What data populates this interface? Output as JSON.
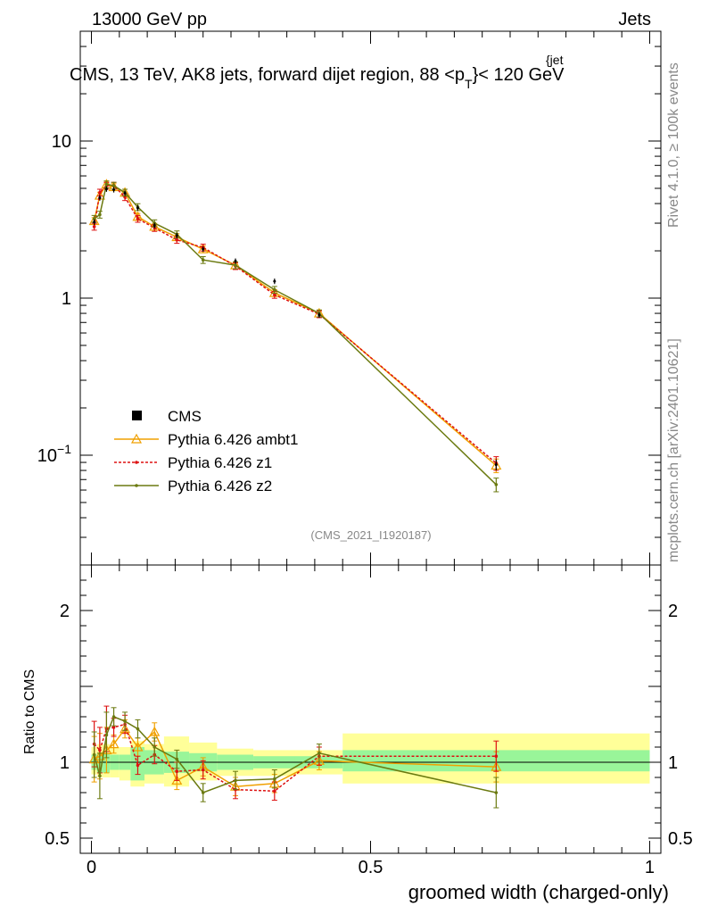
{
  "header": {
    "left": "13000 GeV pp",
    "right": "Jets",
    "title_main": "CMS, 13 TeV, AK8 jets, forward dijet region, 88 <p",
    "title_sub": "T",
    "title_sup": "{jet",
    "title_end": "}< 120 GeV",
    "side_rivet": "Rivet 4.1.0, ≥ 100k events",
    "side_mcplots": "mcplots.cern.ch [arXiv:2401.10621]",
    "analysis_id": "(CMS_2021_I1920187)"
  },
  "legend": [
    {
      "name": "CMS",
      "color": "#000000"
    },
    {
      "name": "Pythia 6.426 ambt1",
      "color": "#f0a000"
    },
    {
      "name": "Pythia 6.426 z1",
      "color": "#dd1111"
    },
    {
      "name": "Pythia 6.426 z2",
      "color": "#6b7a10"
    }
  ],
  "chart_data": [
    {
      "type": "line",
      "title": "CMS, 13 TeV, AK8 jets, forward dijet region, 88 < pT^{jet} < 120 GeV",
      "xlabel": "groomed width (charged-only)",
      "ylabel": "",
      "xlim": [
        -0.02,
        1.02
      ],
      "ylim": [
        0.02,
        50
      ],
      "yscale": "log",
      "ytick_labels": [
        "10^{-1}",
        "1",
        "10"
      ],
      "x": [
        0.005,
        0.015,
        0.027,
        0.04,
        0.06,
        0.083,
        0.113,
        0.153,
        0.2,
        0.258,
        0.328,
        0.408,
        0.725
      ],
      "series": [
        {
          "name": "CMS",
          "values": [
            3.05,
            4.35,
            4.95,
            4.9,
            4.65,
            3.75,
            2.9,
            2.5,
            2.05,
            1.72,
            1.28,
            0.78,
            0.087
          ]
        },
        {
          "name": "Pythia 6.426 ambt1",
          "values": [
            3.1,
            4.5,
            5.3,
            5.1,
            4.7,
            3.3,
            2.85,
            2.45,
            2.05,
            1.62,
            1.08,
            0.8,
            0.086
          ]
        },
        {
          "name": "Pythia 6.426 z1",
          "values": [
            2.85,
            4.7,
            5.2,
            5.2,
            4.4,
            3.2,
            2.8,
            2.35,
            2.1,
            1.6,
            1.05,
            0.79,
            0.089
          ]
        },
        {
          "name": "Pythia 6.426 z2",
          "values": [
            3.2,
            3.4,
            5.3,
            5.2,
            4.7,
            3.8,
            3.0,
            2.55,
            1.75,
            1.62,
            1.13,
            0.8,
            0.065
          ]
        }
      ]
    },
    {
      "type": "line",
      "title": "",
      "xlabel": "groomed width (charged-only)",
      "ylabel": "Ratio to CMS",
      "xlim": [
        -0.02,
        1.02
      ],
      "ylim": [
        0.4,
        2.3
      ],
      "ytick_labels": [
        "0.5",
        "1",
        "2"
      ],
      "xtick_labels": [
        "0",
        "0.5",
        "1"
      ],
      "x": [
        0.005,
        0.015,
        0.027,
        0.04,
        0.06,
        0.083,
        0.113,
        0.153,
        0.2,
        0.258,
        0.328,
        0.408,
        0.725
      ],
      "bands": {
        "bins": [
          0,
          0.01,
          0.02,
          0.033,
          0.05,
          0.07,
          0.095,
          0.13,
          0.175,
          0.225,
          0.29,
          0.365,
          0.45,
          1.0
        ],
        "inner_color": "#99f599",
        "outer_color": "#ffff99",
        "inner": [
          [
            0.95,
            1.05
          ],
          [
            0.93,
            1.06
          ],
          [
            0.93,
            1.06
          ],
          [
            0.95,
            1.05
          ],
          [
            0.95,
            1.05
          ],
          [
            0.88,
            1.1
          ],
          [
            0.92,
            1.08
          ],
          [
            0.93,
            1.07
          ],
          [
            0.94,
            1.06
          ],
          [
            0.95,
            1.05
          ],
          [
            0.96,
            1.04
          ],
          [
            0.96,
            1.04
          ],
          [
            0.94,
            1.08
          ]
        ],
        "outer": [
          [
            0.92,
            1.1
          ],
          [
            0.9,
            1.12
          ],
          [
            0.9,
            1.12
          ],
          [
            0.9,
            1.1
          ],
          [
            0.88,
            1.1
          ],
          [
            0.84,
            1.14
          ],
          [
            0.86,
            1.12
          ],
          [
            0.84,
            1.17
          ],
          [
            0.88,
            1.13
          ],
          [
            0.91,
            1.09
          ],
          [
            0.91,
            1.08
          ],
          [
            0.92,
            1.08
          ],
          [
            0.86,
            1.19
          ]
        ]
      },
      "series": [
        {
          "name": "Pythia 6.426 ambt1",
          "values": [
            1.02,
            1.04,
            1.08,
            1.12,
            1.22,
            1.1,
            1.2,
            0.88,
            0.97,
            0.84,
            0.86,
            1.01,
            0.97
          ]
        },
        {
          "name": "Pythia 6.426 z1",
          "values": [
            1.12,
            1.08,
            1.22,
            1.23,
            1.25,
            0.98,
            1.05,
            0.94,
            0.95,
            0.82,
            0.81,
            1.04,
            1.04
          ]
        },
        {
          "name": "Pythia 6.426 z2",
          "values": [
            1.05,
            0.91,
            1.18,
            1.3,
            1.27,
            1.22,
            1.1,
            1.02,
            0.8,
            0.88,
            0.89,
            1.06,
            0.8
          ]
        }
      ]
    }
  ]
}
